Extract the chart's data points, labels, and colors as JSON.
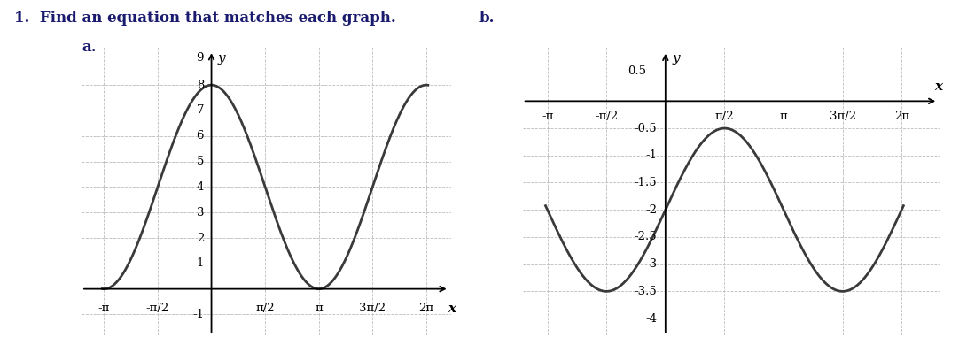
{
  "title_text": "1.  Find an equation that matches each graph.",
  "label_a": "a.",
  "label_b": "b.",
  "graph_a": {
    "amplitude": 4,
    "vertical_shift": 4,
    "xlim": [
      -3.8,
      7.0
    ],
    "ylim": [
      -1.8,
      9.5
    ],
    "yticks": [
      -1,
      1,
      2,
      3,
      4,
      5,
      6,
      7,
      8
    ],
    "ytick_labels": [
      "-1",
      "1",
      "2",
      "3",
      "4",
      "5",
      "6",
      "7",
      "8"
    ],
    "xtick_vals": [
      -3.14159265,
      -1.5707963,
      1.5707963,
      3.14159265,
      4.712389,
      6.2831853
    ],
    "xtick_labels": [
      "-π",
      "-π/2",
      "π/2",
      "π",
      "3π/2",
      "2π"
    ],
    "ylabel_text": "y",
    "xlabel_text": "x",
    "y9_label": "9",
    "curve_color": "#3a3a3a",
    "grid_color": "#bbbbbb",
    "background": "#ffffff"
  },
  "graph_b": {
    "amplitude": 1.5,
    "vertical_shift": -2,
    "xlim": [
      -3.8,
      7.3
    ],
    "ylim": [
      -4.3,
      1.0
    ],
    "yticks": [
      -3.5,
      -3.0,
      -2.5,
      -2.0,
      -1.5,
      -1.0,
      -0.5
    ],
    "ytick_labels": [
      "-3.5",
      "-3",
      "-2.5",
      "-2",
      "-1.5",
      "-1",
      "-0.5"
    ],
    "xtick_vals": [
      -3.14159265,
      -1.5707963,
      1.5707963,
      3.14159265,
      4.712389,
      6.2831853
    ],
    "xtick_labels": [
      "-π",
      "-π/2",
      "π/2",
      "π",
      "3π/2",
      "2π"
    ],
    "ylabel_text": "y",
    "xlabel_text": "x",
    "y05_label": "0.5",
    "y_neg4_label": "-4",
    "curve_color": "#3a3a3a",
    "grid_color": "#bbbbbb",
    "background": "#ffffff"
  }
}
